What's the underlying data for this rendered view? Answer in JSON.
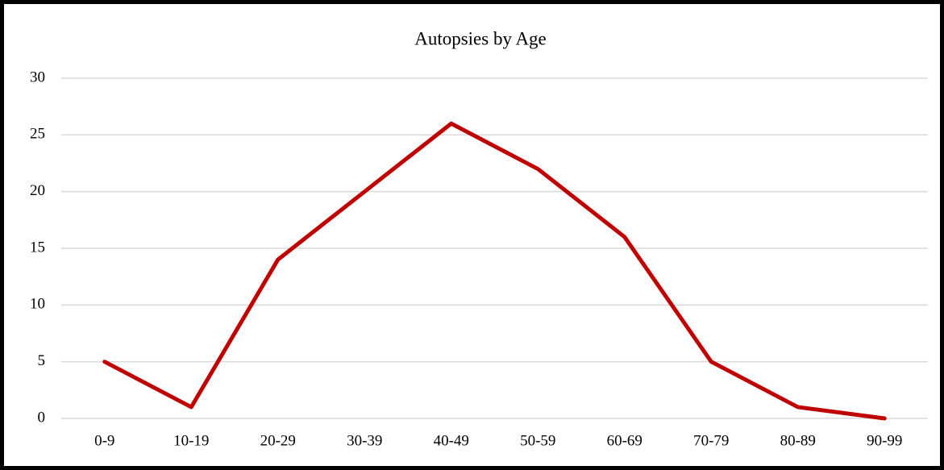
{
  "chart_data": {
    "type": "line",
    "title": "Autopsies by Age",
    "categories": [
      "0-9",
      "10-19",
      "20-29",
      "30-39",
      "40-49",
      "50-59",
      "60-69",
      "70-79",
      "80-89",
      "90-99"
    ],
    "series": [
      {
        "name": "Autopsies",
        "color": "#c00000",
        "values": [
          5,
          1,
          14,
          20,
          26,
          22,
          16,
          5,
          1,
          0
        ]
      }
    ],
    "ylim": [
      0,
      30
    ],
    "yticks": [
      0,
      5,
      10,
      15,
      20,
      25,
      30
    ],
    "grid": true
  }
}
